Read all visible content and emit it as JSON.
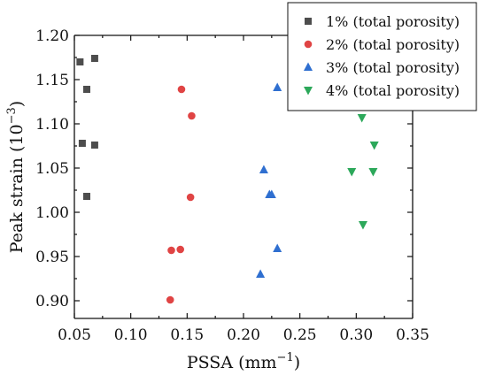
{
  "chart_data": {
    "type": "scatter",
    "title": "",
    "xlabel": "PSSA (mm",
    "xlabel_sup": "−1",
    "xlabel_suffix": ")",
    "ylabel": "Peak strain (10",
    "ylabel_sup": "−3",
    "ylabel_suffix": ")",
    "xlim": [
      0.05,
      0.35
    ],
    "ylim": [
      0.88,
      1.2
    ],
    "xticks": [
      0.05,
      0.1,
      0.15,
      0.2,
      0.25,
      0.3,
      0.35
    ],
    "xtick_labels": [
      "0.05",
      "0.10",
      "0.15",
      "0.20",
      "0.25",
      "0.30",
      "0.35"
    ],
    "yticks": [
      0.9,
      0.95,
      1.0,
      1.05,
      1.1,
      1.15,
      1.2
    ],
    "ytick_labels": [
      "0.90",
      "0.95",
      "1.00",
      "1.05",
      "1.10",
      "1.15",
      "1.20"
    ],
    "grid": false,
    "legend_position": "top-right",
    "series": [
      {
        "name": "1% (total porosity)",
        "marker": "square",
        "color": "#4d4d4d",
        "points": [
          {
            "x": 0.055,
            "y": 1.17
          },
          {
            "x": 0.068,
            "y": 1.174
          },
          {
            "x": 0.061,
            "y": 1.139
          },
          {
            "x": 0.057,
            "y": 1.078
          },
          {
            "x": 0.068,
            "y": 1.076
          },
          {
            "x": 0.061,
            "y": 1.018
          }
        ]
      },
      {
        "name": "2% (total porosity)",
        "marker": "circle",
        "color": "#e04444",
        "points": [
          {
            "x": 0.145,
            "y": 1.139
          },
          {
            "x": 0.154,
            "y": 1.109
          },
          {
            "x": 0.153,
            "y": 1.017
          },
          {
            "x": 0.136,
            "y": 0.957
          },
          {
            "x": 0.144,
            "y": 0.958
          },
          {
            "x": 0.135,
            "y": 0.901
          }
        ]
      },
      {
        "name": "3% (total porosity)",
        "marker": "triangle-up",
        "color": "#2f6fd0",
        "points": [
          {
            "x": 0.23,
            "y": 1.141
          },
          {
            "x": 0.218,
            "y": 1.048
          },
          {
            "x": 0.223,
            "y": 1.02
          },
          {
            "x": 0.225,
            "y": 1.02
          },
          {
            "x": 0.23,
            "y": 0.959
          },
          {
            "x": 0.215,
            "y": 0.93
          }
        ]
      },
      {
        "name": "4% (total porosity)",
        "marker": "triangle-down",
        "color": "#2ca85a",
        "points": [
          {
            "x": 0.305,
            "y": 1.107
          },
          {
            "x": 0.316,
            "y": 1.076
          },
          {
            "x": 0.296,
            "y": 1.046
          },
          {
            "x": 0.315,
            "y": 1.046
          },
          {
            "x": 0.306,
            "y": 0.986
          }
        ]
      }
    ]
  }
}
